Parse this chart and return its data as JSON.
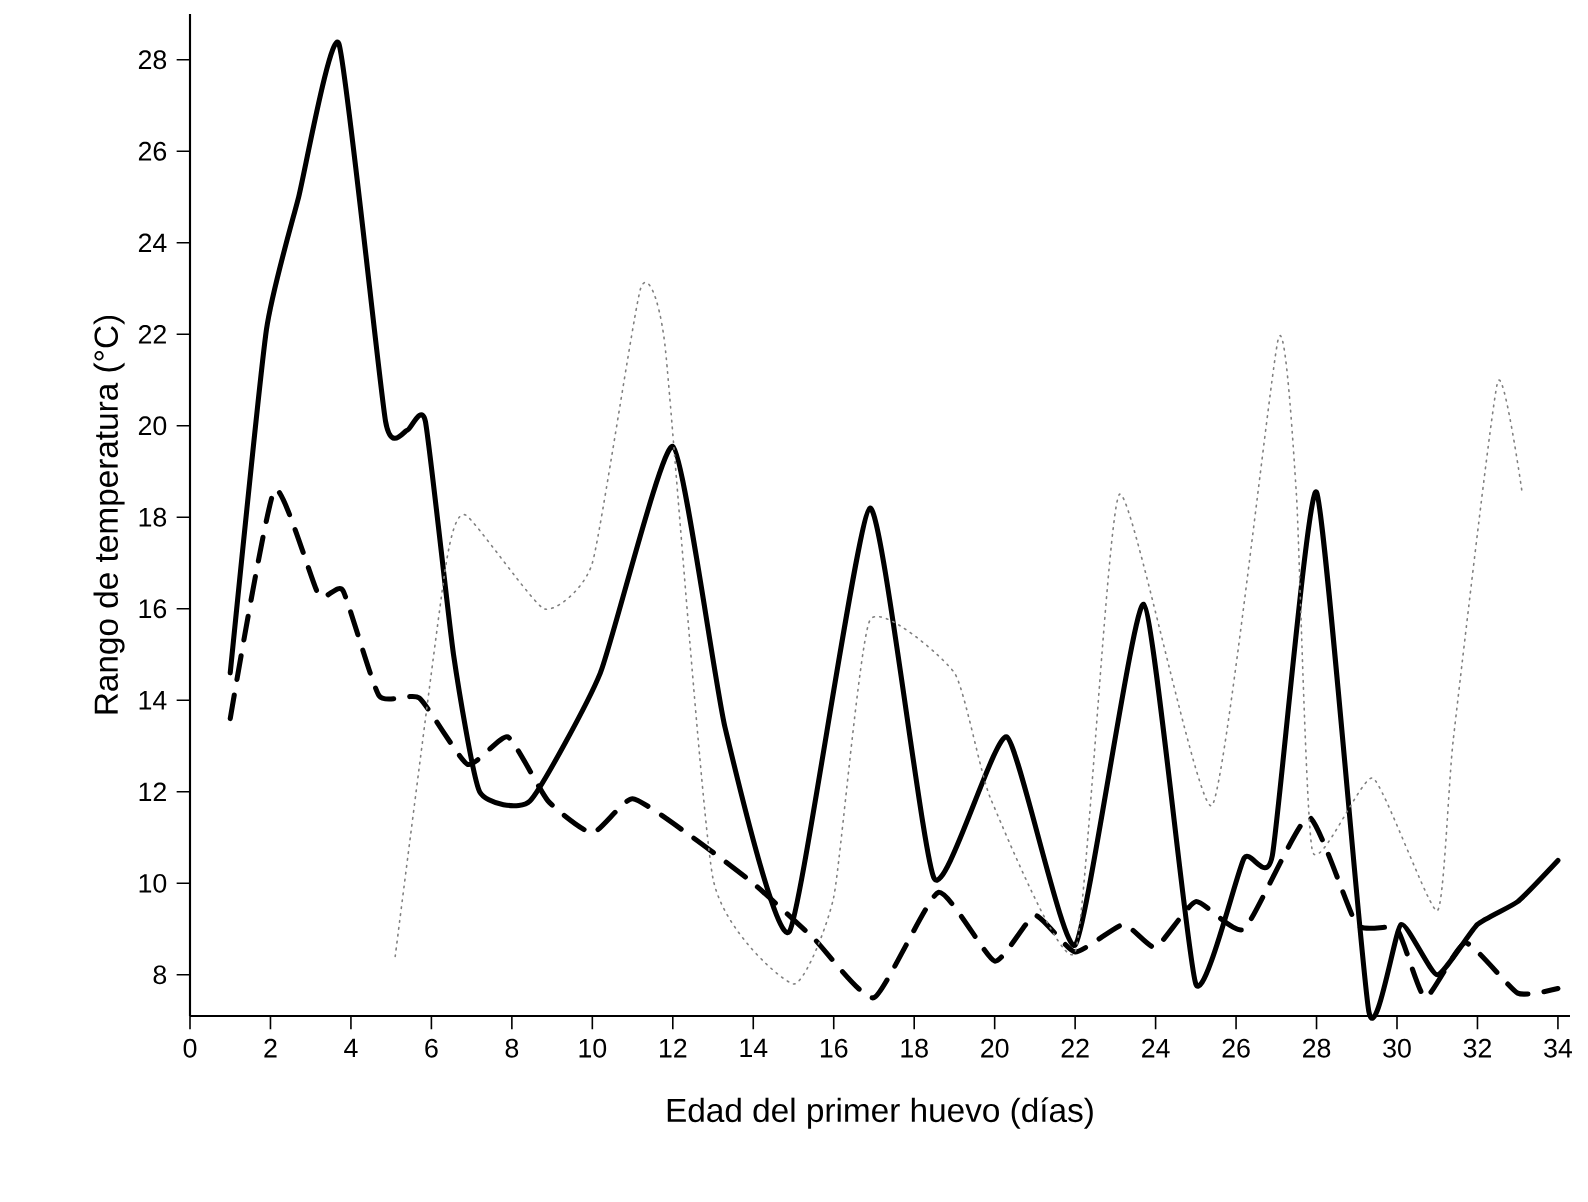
{
  "chart_data": {
    "type": "line",
    "xlabel": "Edad del primer huevo (días)",
    "ylabel": "Rango de temperatura (°C)",
    "xlim": [
      0,
      34.3
    ],
    "ylim": [
      7.1,
      29
    ],
    "xticks": [
      0,
      2,
      4,
      6,
      8,
      10,
      12,
      14,
      16,
      18,
      20,
      22,
      24,
      26,
      28,
      30,
      32,
      34
    ],
    "yticks": [
      8,
      10,
      12,
      14,
      16,
      18,
      20,
      22,
      24,
      26,
      28
    ],
    "series": [
      {
        "color": "#000000",
        "line_style": "solid",
        "x": [
          1,
          1.9,
          2.7,
          3.7,
          4.86,
          5.4,
          5.85,
          6.55,
          7.2,
          8.45,
          10.2,
          12.0,
          13.3,
          14.9,
          16.9,
          18.5,
          20.3,
          22.0,
          23.7,
          25.0,
          26.2,
          26.9,
          28.0,
          29.3,
          30.1,
          31.0,
          32.0,
          33.0,
          34.0
        ],
        "values": [
          14.6,
          22.1,
          25.0,
          28.35,
          20.1,
          19.9,
          20.1,
          15.0,
          12.0,
          11.8,
          14.6,
          19.55,
          13.4,
          8.95,
          18.2,
          10.1,
          13.2,
          8.65,
          16.1,
          7.8,
          10.55,
          10.6,
          18.55,
          7.2,
          9.1,
          8.0,
          9.1,
          9.6,
          10.5
        ]
      },
      {
        "color": "#000000",
        "line_style": "dashed",
        "x": [
          1,
          2.1,
          3.2,
          3.8,
          4.7,
          5.7,
          6.9,
          7.9,
          8.9,
          10.0,
          11.0,
          12.5,
          14.0,
          15.5,
          17.0,
          18.6,
          20.0,
          21.0,
          22.0,
          23.2,
          24.0,
          25.0,
          26.2,
          27.8,
          29.0,
          30.0,
          30.7,
          31.7,
          33.0,
          34.0
        ],
        "values": [
          13.6,
          18.6,
          16.3,
          16.4,
          14.1,
          14.05,
          12.6,
          13.2,
          11.8,
          11.1,
          11.85,
          11.0,
          10.0,
          8.8,
          7.5,
          9.8,
          8.3,
          9.3,
          8.5,
          9.1,
          8.6,
          9.6,
          9.0,
          11.45,
          9.1,
          9.0,
          7.5,
          8.7,
          7.6,
          7.7
        ]
      },
      {
        "color": "#808080",
        "line_style": "dotted",
        "x": [
          5.1,
          6.35,
          6.85,
          8.8,
          10.0,
          11.2,
          11.8,
          13.0,
          15.0,
          16.0,
          16.9,
          19.0,
          19.9,
          22.0,
          23.1,
          25.4,
          27.05,
          27.5,
          27.9,
          29.4,
          31.0,
          31.4,
          32.5,
          33.1
        ],
        "values": [
          8.4,
          16.9,
          18.05,
          16.0,
          17.0,
          23.0,
          21.8,
          10.1,
          7.8,
          9.7,
          15.75,
          14.6,
          11.85,
          8.5,
          18.5,
          11.7,
          21.9,
          18.5,
          10.7,
          12.3,
          9.4,
          13.15,
          20.95,
          18.6
        ]
      }
    ]
  }
}
